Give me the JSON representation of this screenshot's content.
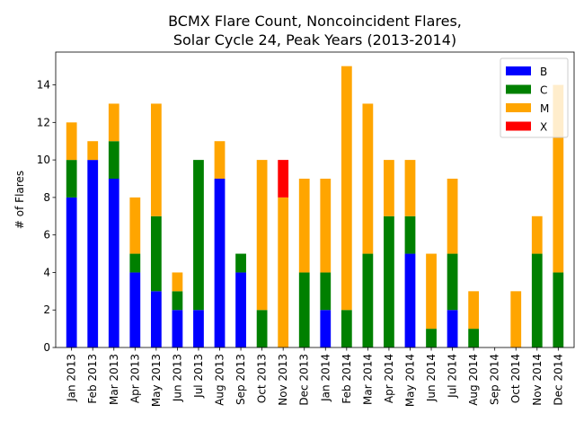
{
  "chart_data": {
    "type": "bar",
    "stacked": true,
    "title_line1": "BCMX Flare Count, Noncoincident Flares,",
    "title_line2": "Solar Cycle 24, Peak Years (2013-2014)",
    "xlabel": "",
    "ylabel": "# of Flares",
    "ylim": [
      0,
      15.75
    ],
    "yticks": [
      0,
      2,
      4,
      6,
      8,
      10,
      12,
      14
    ],
    "grid": false,
    "legend": "top-right",
    "categories": [
      "Jan 2013",
      "Feb 2013",
      "Mar 2013",
      "Apr 2013",
      "May 2013",
      "Jun 2013",
      "Jul 2013",
      "Aug 2013",
      "Sep 2013",
      "Oct 2013",
      "Nov 2013",
      "Dec 2013",
      "Jan 2014",
      "Feb 2014",
      "Mar 2014",
      "Apr 2014",
      "May 2014",
      "Jun 2014",
      "Jul 2014",
      "Aug 2014",
      "Sep 2014",
      "Oct 2014",
      "Nov 2014",
      "Dec 2014"
    ],
    "series": [
      {
        "name": "B",
        "color": "#0000ff",
        "values": [
          8,
          10,
          9,
          4,
          3,
          2,
          2,
          9,
          4,
          0,
          0,
          0,
          2,
          0,
          0,
          0,
          5,
          0,
          2,
          0,
          0,
          0,
          0,
          0
        ]
      },
      {
        "name": "C",
        "color": "#008000",
        "values": [
          2,
          0,
          2,
          1,
          4,
          1,
          8,
          0,
          1,
          2,
          0,
          4,
          2,
          2,
          5,
          7,
          2,
          1,
          3,
          1,
          0,
          0,
          5,
          4
        ]
      },
      {
        "name": "M",
        "color": "#ffa500",
        "values": [
          2,
          1,
          2,
          3,
          6,
          1,
          0,
          2,
          0,
          8,
          8,
          5,
          5,
          13,
          8,
          3,
          3,
          4,
          4,
          2,
          0,
          3,
          2,
          10
        ]
      },
      {
        "name": "X",
        "color": "#ff0000",
        "values": [
          0,
          0,
          0,
          0,
          0,
          0,
          0,
          0,
          0,
          0,
          2,
          0,
          0,
          0,
          0,
          0,
          0,
          0,
          0,
          0,
          0,
          0,
          0,
          0
        ]
      }
    ]
  }
}
